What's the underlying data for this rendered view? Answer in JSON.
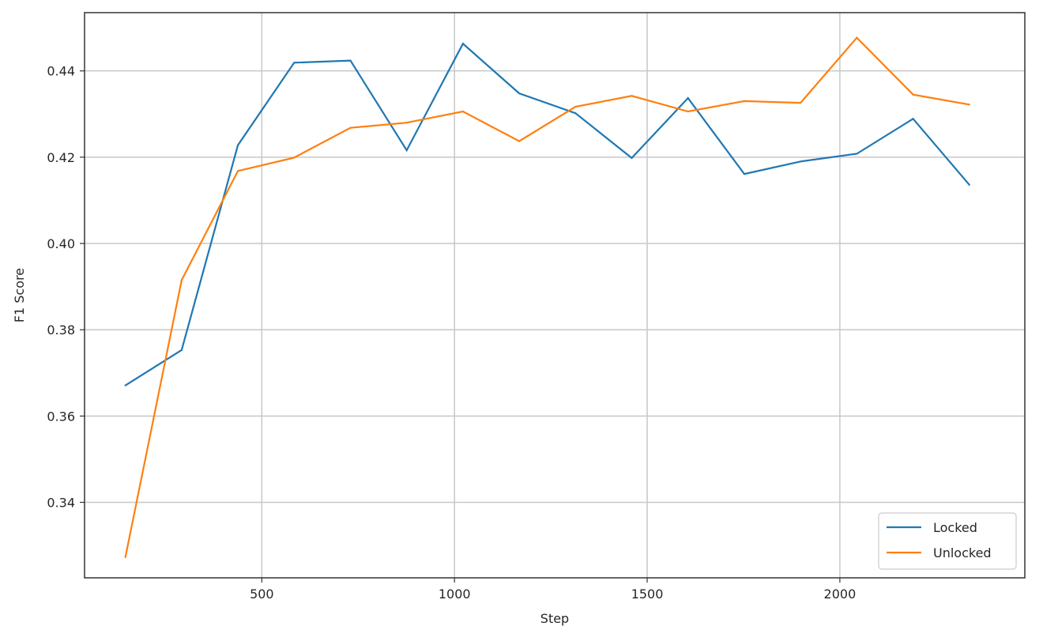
{
  "chart_data": {
    "type": "line",
    "xlabel": "Step",
    "ylabel": "F1 Score",
    "xlim": [
      40,
      2480
    ],
    "ylim": [
      0.3225,
      0.4535
    ],
    "xticks": [
      500,
      1000,
      1500,
      2000
    ],
    "yticks": [
      0.34,
      0.36,
      0.38,
      0.4,
      0.42,
      0.44
    ],
    "ytick_labels": [
      "0.34",
      "0.36",
      "0.38",
      "0.40",
      "0.42",
      "0.44"
    ],
    "grid": true,
    "legend_position": "lower-right",
    "series": [
      {
        "name": "Locked",
        "color": "#1f77b4",
        "x": [
          146,
          292,
          438,
          584,
          730,
          876,
          1022,
          1168,
          1314,
          1460,
          1606,
          1752,
          1898,
          2044,
          2190,
          2336
        ],
        "y": [
          0.3671,
          0.3753,
          0.4228,
          0.4419,
          0.4424,
          0.4216,
          0.4463,
          0.4348,
          0.4302,
          0.4198,
          0.4337,
          0.4161,
          0.419,
          0.4208,
          0.4289,
          0.4136
        ]
      },
      {
        "name": "Unlocked",
        "color": "#ff7f0e",
        "x": [
          146,
          292,
          438,
          584,
          730,
          876,
          1022,
          1168,
          1314,
          1460,
          1606,
          1752,
          1898,
          2044,
          2190,
          2336
        ],
        "y": [
          0.3273,
          0.3915,
          0.4168,
          0.4199,
          0.4268,
          0.428,
          0.4306,
          0.4237,
          0.4317,
          0.4342,
          0.4306,
          0.433,
          0.4326,
          0.4477,
          0.4345,
          0.4322
        ]
      }
    ]
  }
}
